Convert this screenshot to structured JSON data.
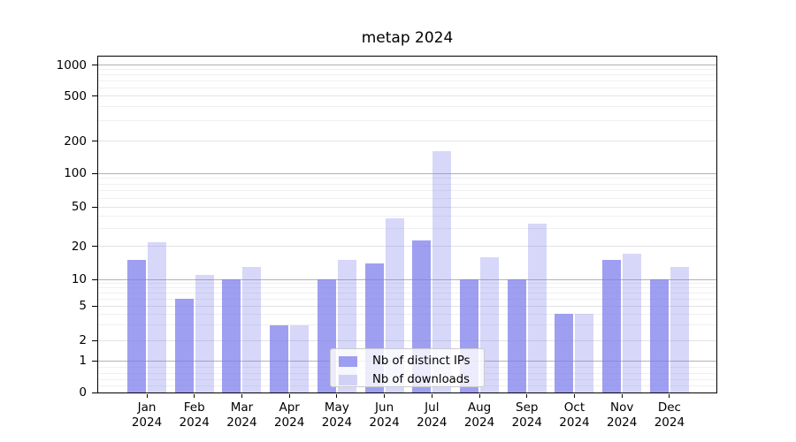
{
  "title": "metap 2024",
  "chart_data": {
    "type": "bar",
    "title": "metap 2024",
    "categories": [
      "Jan",
      "Feb",
      "Mar",
      "Apr",
      "May",
      "Jun",
      "Jul",
      "Aug",
      "Sep",
      "Oct",
      "Nov",
      "Dec"
    ],
    "category_year": "2024",
    "series": [
      {
        "name": "Nb of distinct IPs",
        "key": "distinct-ips",
        "color": "rgba(122,122,235,0.72)",
        "values": [
          15,
          6,
          10,
          3,
          10,
          14,
          23,
          10,
          10,
          4,
          15,
          10
        ]
      },
      {
        "name": "Nb of downloads",
        "key": "downloads",
        "color": "rgba(122,122,235,0.30)",
        "values": [
          22,
          11,
          13,
          3,
          15,
          38,
          160,
          16,
          34,
          4,
          17,
          13
        ]
      }
    ],
    "xlabel": "",
    "ylabel": "",
    "yscale": "symlog",
    "yticks": [
      0,
      1,
      2,
      5,
      10,
      20,
      50,
      100,
      200,
      500,
      1000
    ],
    "ylim": [
      0,
      1300
    ],
    "grid": true,
    "legend_position": "lower-center",
    "gridline_colors": {
      "power_of_ten": "#b2b2b2",
      "labeled": "#e3e3e3",
      "minor": "#f0f0f0"
    }
  }
}
